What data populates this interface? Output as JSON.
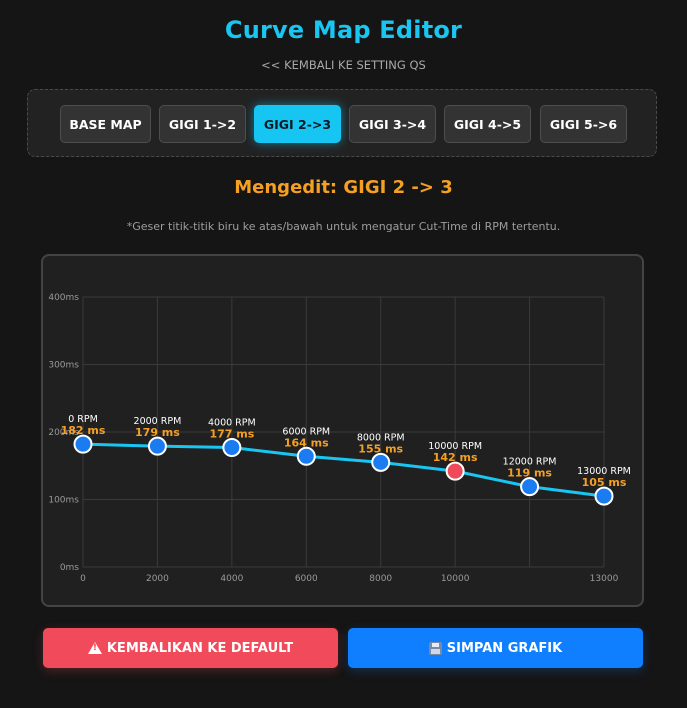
{
  "page": {
    "title": "Curve Map Editor",
    "back_link": "<< KEMBALI KE SETTING QS",
    "editing_label": "Mengedit: GIGI 2 -> 3",
    "hint": "*Geser titik-titik biru ke atas/bawah untuk mengatur Cut-Time di RPM tertentu."
  },
  "tabs": [
    {
      "label": "BASE MAP",
      "active": false
    },
    {
      "label": "GIGI 1->2",
      "active": false
    },
    {
      "label": "GIGI 2->3",
      "active": true
    },
    {
      "label": "GIGI 3->4",
      "active": false
    },
    {
      "label": "GIGI 4->5",
      "active": false
    },
    {
      "label": "GIGI 5->6",
      "active": false
    }
  ],
  "actions": {
    "reset_label": "KEMBALIKAN KE DEFAULT",
    "reset_icon": "warning-icon",
    "save_label": "SIMPAN GRAFIK",
    "save_icon": "floppy-disk-icon"
  },
  "colors": {
    "accent": "#19c6f2",
    "orange": "#f5a023",
    "point_blue": "#1a7cf0",
    "point_red": "#f04a5a",
    "reset_button": "#f14a5b",
    "save_button": "#0f7fff"
  },
  "chart_data": {
    "type": "line",
    "title": "",
    "xlabel": "",
    "ylabel": "",
    "x_ticks": [
      "0",
      "2000",
      "4000",
      "6000",
      "8000",
      "10000",
      "13000"
    ],
    "y_ticks": [
      "0ms",
      "100ms",
      "200ms",
      "300ms",
      "400ms"
    ],
    "ylim": [
      0,
      400
    ],
    "grid": true,
    "series": [
      {
        "points": [
          {
            "rpm": 0,
            "ms": 182,
            "rpm_label": "0 RPM",
            "ms_label": "182 ms",
            "highlight": false
          },
          {
            "rpm": 2000,
            "ms": 179,
            "rpm_label": "2000 RPM",
            "ms_label": "179 ms",
            "highlight": false
          },
          {
            "rpm": 4000,
            "ms": 177,
            "rpm_label": "4000 RPM",
            "ms_label": "177 ms",
            "highlight": false
          },
          {
            "rpm": 6000,
            "ms": 164,
            "rpm_label": "6000 RPM",
            "ms_label": "164 ms",
            "highlight": false
          },
          {
            "rpm": 8000,
            "ms": 155,
            "rpm_label": "8000 RPM",
            "ms_label": "155 ms",
            "highlight": false
          },
          {
            "rpm": 10000,
            "ms": 142,
            "rpm_label": "10000 RPM",
            "ms_label": "142 ms",
            "highlight": true
          },
          {
            "rpm": 12000,
            "ms": 119,
            "rpm_label": "12000 RPM",
            "ms_label": "119 ms",
            "highlight": false
          },
          {
            "rpm": 13000,
            "ms": 105,
            "rpm_label": "13000 RPM",
            "ms_label": "105 ms",
            "highlight": false
          }
        ]
      }
    ]
  }
}
